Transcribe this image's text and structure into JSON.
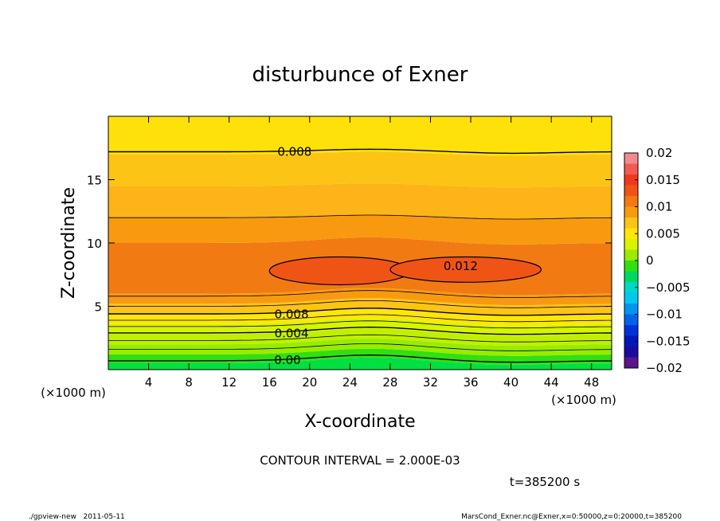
{
  "chart_data": {
    "type": "heatmap",
    "title": "disturbunce of Exner",
    "xlabel": "X-coordinate",
    "ylabel": "Z-coordinate",
    "x_unit_label": "(×1000 m)",
    "xlim": [
      0,
      50
    ],
    "ylim": [
      0,
      20
    ],
    "x_ticks": [
      4,
      8,
      12,
      16,
      20,
      24,
      28,
      32,
      36,
      40,
      44,
      48
    ],
    "y_ticks": [
      5,
      10,
      15
    ],
    "contour_interval_text": "CONTOUR INTERVAL = 2.000E-03",
    "time_text": "t=385200 s",
    "footer_left": "./gpview-new   2011-05-11",
    "footer_right": "MarsCond_Exner.nc@Exner,x=0:50000,z=0:20000,t=385200",
    "contour_labels": [
      {
        "text": "0.008",
        "x": 18.5,
        "z": 17.2
      },
      {
        "text": "0.012",
        "x": 35.0,
        "z": 8.2
      },
      {
        "text": "0.008",
        "x": 18.2,
        "z": 4.3
      },
      {
        "text": "0.004",
        "x": 18.2,
        "z": 2.8
      },
      {
        "text": "0.00",
        "x": 17.8,
        "z": 0.7
      }
    ],
    "colorbar": {
      "tick_labels": [
        "0.02",
        "0.015",
        "0.01",
        "0.005",
        "0",
        "−0.005",
        "−0.01",
        "−0.015",
        "−0.02"
      ],
      "tick_values": [
        0.02,
        0.015,
        0.01,
        0.005,
        0,
        -0.005,
        -0.01,
        -0.015,
        -0.02
      ],
      "range": [
        -0.02,
        0.02
      ],
      "levels": [
        {
          "from": 0.018,
          "to": 0.02,
          "color": "#f48a8e"
        },
        {
          "from": 0.016,
          "to": 0.018,
          "color": "#f45a54"
        },
        {
          "from": 0.014,
          "to": 0.016,
          "color": "#f2381c"
        },
        {
          "from": 0.012,
          "to": 0.014,
          "color": "#f05414"
        },
        {
          "from": 0.01,
          "to": 0.012,
          "color": "#f27a12"
        },
        {
          "from": 0.008,
          "to": 0.01,
          "color": "#f89a10"
        },
        {
          "from": 0.006,
          "to": 0.008,
          "color": "#fcc414"
        },
        {
          "from": 0.004,
          "to": 0.006,
          "color": "#ffe60a"
        },
        {
          "from": 0.002,
          "to": 0.004,
          "color": "#d8f400"
        },
        {
          "from": 0.0,
          "to": 0.002,
          "color": "#98ec00"
        },
        {
          "from": -0.002,
          "to": 0.0,
          "color": "#30e010"
        },
        {
          "from": -0.004,
          "to": -0.002,
          "color": "#00d860"
        },
        {
          "from": -0.006,
          "to": -0.004,
          "color": "#00d8c8"
        },
        {
          "from": -0.008,
          "to": -0.006,
          "color": "#00c8f0"
        },
        {
          "from": -0.01,
          "to": -0.008,
          "color": "#0096f0"
        },
        {
          "from": -0.012,
          "to": -0.01,
          "color": "#0064e8"
        },
        {
          "from": -0.014,
          "to": -0.012,
          "color": "#0032d8"
        },
        {
          "from": -0.016,
          "to": -0.014,
          "color": "#0018b8"
        },
        {
          "from": -0.018,
          "to": -0.016,
          "color": "#1a0aa0"
        },
        {
          "from": -0.02,
          "to": -0.018,
          "color": "#5a148c"
        }
      ]
    },
    "field_bands": [
      {
        "z_low": 0.0,
        "z_high": 0.5,
        "color": "#00e040"
      },
      {
        "z_low": 0.5,
        "z_high": 1.2,
        "color": "#30e010"
      },
      {
        "z_low": 1.2,
        "z_high": 2.0,
        "color": "#98ec00"
      },
      {
        "z_low": 2.0,
        "z_high": 2.8,
        "color": "#c0f000"
      },
      {
        "z_low": 2.8,
        "z_high": 3.6,
        "color": "#d8f400"
      },
      {
        "z_low": 3.6,
        "z_high": 4.4,
        "color": "#ffe60a"
      },
      {
        "z_low": 4.4,
        "z_high": 5.2,
        "color": "#fcc414"
      },
      {
        "z_low": 5.2,
        "z_high": 6.0,
        "color": "#f89a10"
      },
      {
        "z_low": 6.0,
        "z_high": 10.0,
        "color": "#f27a12"
      },
      {
        "z_low": 10.0,
        "z_high": 12.0,
        "color": "#f89a10"
      },
      {
        "z_low": 12.0,
        "z_high": 14.5,
        "color": "#fcb418"
      },
      {
        "z_low": 14.5,
        "z_high": 17.0,
        "color": "#fcc414"
      },
      {
        "z_low": 17.0,
        "z_high": 20.0,
        "color": "#ffe10a"
      }
    ],
    "contour_lines_z": [
      0.7,
      1.6,
      2.3,
      2.9,
      3.4,
      3.9,
      4.4,
      5.0,
      5.8,
      12.0,
      17.2
    ],
    "highs": [
      {
        "x_center": 23.0,
        "z_center": 7.8,
        "x_half": 7.0,
        "z_half": 1.1,
        "color": "#f05414"
      },
      {
        "x_center": 35.5,
        "z_center": 7.9,
        "x_half": 7.5,
        "z_half": 1.0,
        "color": "#f05414"
      }
    ]
  }
}
